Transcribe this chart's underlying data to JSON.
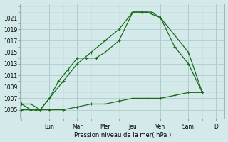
{
  "bg_color": "#d4eaea",
  "grid_major_color": "#b0cccc",
  "grid_minor_color": "#c4dddd",
  "line_color": "#1a6b1a",
  "ylabel": "Pression niveau de la mer( hPa )",
  "ylim": [
    1003.5,
    1023.5
  ],
  "yticks": [
    1005,
    1007,
    1009,
    1011,
    1013,
    1015,
    1017,
    1019,
    1021
  ],
  "day_labels": [
    "Lun",
    "Mar",
    "Mer",
    "Jeu",
    "Ven",
    "Sam",
    "D"
  ],
  "day_positions": [
    1.0,
    2.0,
    3.0,
    4.0,
    5.0,
    6.0,
    7.0
  ],
  "xlim": [
    -0.05,
    7.3
  ],
  "line1_x": [
    0.0,
    0.33,
    0.67,
    1.0,
    1.33,
    1.67,
    2.0,
    2.33,
    2.67,
    3.0,
    3.5,
    4.0,
    4.33,
    4.67,
    5.0,
    5.5,
    6.0,
    6.5
  ],
  "line1_y": [
    1006,
    1006,
    1005,
    1007,
    1010,
    1012,
    1014,
    1014,
    1014,
    1015,
    1017,
    1022,
    1022,
    1022,
    1021,
    1016,
    1013,
    1008
  ],
  "line2_x": [
    0.0,
    0.33,
    0.67,
    1.0,
    1.5,
    2.0,
    2.5,
    3.0,
    3.5,
    4.0,
    4.5,
    5.0,
    5.5,
    6.0,
    6.5
  ],
  "line2_y": [
    1006,
    1005,
    1005,
    1007,
    1010,
    1013,
    1015,
    1017,
    1019,
    1022,
    1022,
    1021,
    1018,
    1015,
    1008
  ],
  "line3_x": [
    0.0,
    0.5,
    1.0,
    1.5,
    2.0,
    2.5,
    3.0,
    3.5,
    4.0,
    4.5,
    5.0,
    5.5,
    6.0,
    6.5
  ],
  "line3_y": [
    1005,
    1005,
    1005,
    1005,
    1005.5,
    1006,
    1006,
    1006.5,
    1007,
    1007,
    1007,
    1007.5,
    1008,
    1008
  ]
}
